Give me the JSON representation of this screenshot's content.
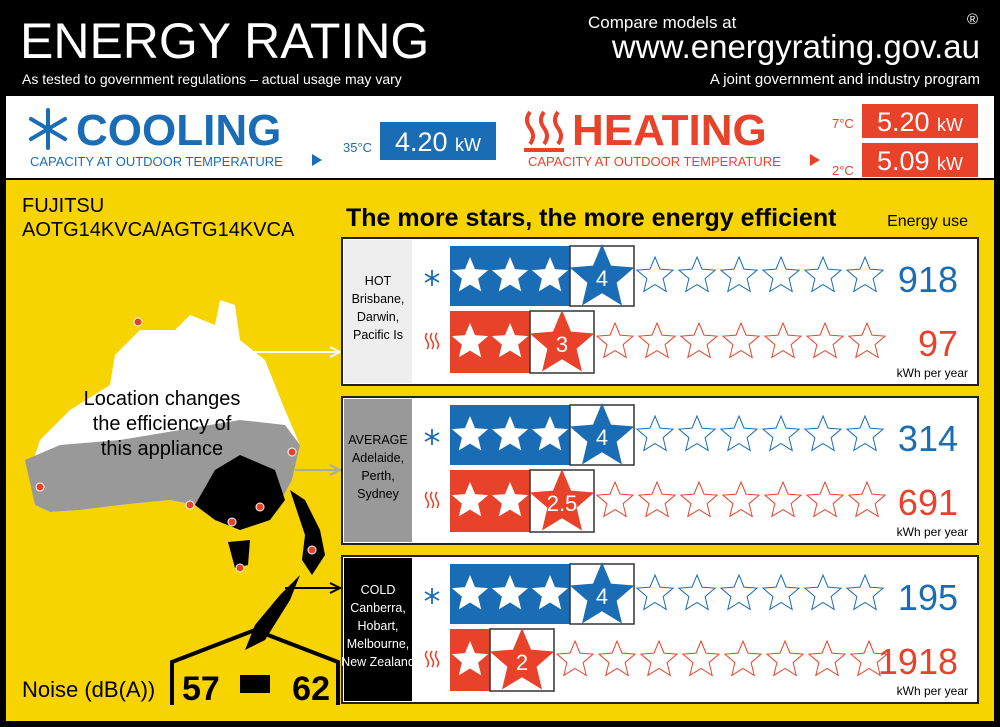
{
  "header": {
    "title": "ENERGY RATING",
    "subtitle": "As tested to government regulations – actual usage may vary",
    "compare": "Compare models at",
    "url": "www.energyrating.gov.au",
    "program": "A joint government and industry program",
    "registered": "®"
  },
  "cooling": {
    "label": "COOLING",
    "caption": "CAPACITY AT OUTDOOR TEMPERATURE",
    "temperature": "35°C",
    "capacity": "4.20",
    "unit": "kW"
  },
  "heating": {
    "label": "HEATING",
    "caption": "CAPACITY AT OUTDOOR TEMPERATURE",
    "capacities": [
      {
        "temperature": "7°C",
        "capacity": "5.20",
        "unit": "kW"
      },
      {
        "temperature": "2°C",
        "capacity": "5.09",
        "unit": "kW"
      }
    ]
  },
  "product": {
    "brand": "FUJITSU",
    "model": "AOTG14KVCA/AGTG14KVCA"
  },
  "stars_heading": "The more stars, the more energy efficient",
  "energy_use_heading": "Energy use",
  "map_caption": [
    "Location changes",
    "the efficiency of",
    "this appliance"
  ],
  "zones": [
    {
      "name": "HOT",
      "places": [
        "Brisbane,",
        "Darwin,",
        "Pacific Is"
      ],
      "cooling": {
        "stars": 4,
        "energy": 918
      },
      "heating": {
        "stars": 3,
        "energy": 97,
        "unit": "kWh per year"
      }
    },
    {
      "name": "AVERAGE",
      "places": [
        "Adelaide,",
        "Perth,",
        "Sydney"
      ],
      "cooling": {
        "stars": 4,
        "energy": 314
      },
      "heating": {
        "stars": 2.5,
        "energy": 691,
        "unit": "kWh per year"
      }
    },
    {
      "name": "COLD",
      "places": [
        "Canberra,",
        "Hobart,",
        "Melbourne,",
        "New Zealand"
      ],
      "cooling": {
        "stars": 4,
        "energy": 195
      },
      "heating": {
        "stars": 2,
        "energy": 1918,
        "unit": "kWh per year"
      }
    }
  ],
  "noise": {
    "label": "Noise (dB(A))",
    "indoor": 57,
    "outdoor": 62
  }
}
